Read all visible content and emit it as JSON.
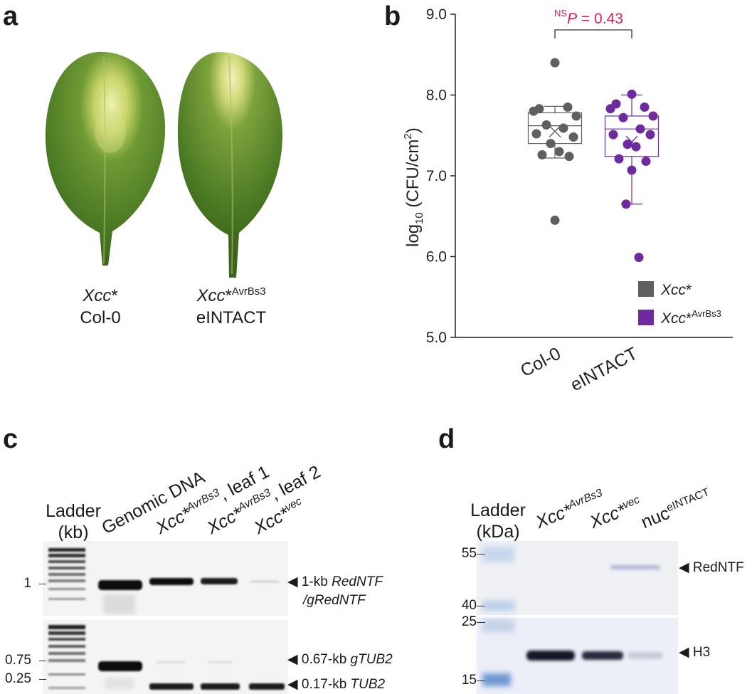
{
  "panel_labels": {
    "a": "a",
    "b": "b",
    "c": "c",
    "d": "d"
  },
  "panel_a": {
    "leaf1": {
      "strain": "Xcc",
      "strain_mark": "*",
      "line": "Col-0"
    },
    "leaf2": {
      "strain": "Xcc",
      "strain_mark": "*",
      "strain_sup": "AvrBs3",
      "line": "eINTACT"
    }
  },
  "chart_data": {
    "type": "box",
    "ylabel_prefix": "log",
    "ylabel_sub": "10",
    "ylabel_main": " (CFU/cm",
    "ylabel_sup": "2",
    "ylabel_end": ")",
    "yticks": [
      "5.0",
      "6.0",
      "7.0",
      "8.0",
      "9.0"
    ],
    "ylim": [
      5.0,
      9.0
    ],
    "categories": [
      "Col-0",
      "eINTACT"
    ],
    "significance": {
      "ns": "NS",
      "p_label": "P",
      "p_text": " = 0.43"
    },
    "colors": {
      "xcc": "#5f5f5f",
      "avrbs3": "#6e2b9e",
      "sig": "#d81b60"
    },
    "legend": {
      "position": "bottom-right",
      "items": [
        {
          "label": "Xcc",
          "mark": "*",
          "sup": "",
          "color": "#5f5f5f"
        },
        {
          "label": "Xcc",
          "mark": "*",
          "sup": "AvrBs3",
          "color": "#6e2b9e"
        }
      ]
    },
    "series": [
      {
        "category": "Col-0",
        "color": "#5f5f5f",
        "box": {
          "whisker_low": 7.22,
          "q1": 7.4,
          "median": 7.62,
          "q3": 7.78,
          "whisker_high": 7.86,
          "mean": 7.55
        },
        "points": [
          8.4,
          7.83,
          7.85,
          7.8,
          7.74,
          7.63,
          7.59,
          7.52,
          7.48,
          7.4,
          7.3,
          7.26,
          7.24,
          6.45
        ]
      },
      {
        "category": "eINTACT",
        "color": "#6e2b9e",
        "box": {
          "whisker_low": 6.65,
          "q1": 7.24,
          "median": 7.58,
          "q3": 7.74,
          "whisker_high": 8.0,
          "mean": 7.42
        },
        "points": [
          8.01,
          7.89,
          7.85,
          7.83,
          7.74,
          7.72,
          7.58,
          7.51,
          7.51,
          7.39,
          7.36,
          7.21,
          7.18,
          7.07,
          6.65,
          5.99
        ]
      }
    ]
  },
  "panel_c": {
    "ladder_title": "Ladder",
    "ladder_unit": "(kb)",
    "lanes": [
      {
        "main": "Genomic DNA",
        "sup": "",
        "tail": ""
      },
      {
        "main": "Xcc*",
        "sup": "AvrBs3",
        "tail": ", leaf 1"
      },
      {
        "main": "Xcc*",
        "sup": "AvrBs3",
        "tail": ", leaf 2"
      },
      {
        "main": "Xcc*",
        "sup": "vec",
        "tail": ""
      }
    ],
    "size_marks": [
      "1",
      "0.75",
      "0.25"
    ],
    "annotations": [
      {
        "prefix": "1-kb ",
        "gene": "RedNTF",
        "line2": "/gRedNTF"
      },
      {
        "prefix": "0.67-kb ",
        "gene": "gTUB2"
      },
      {
        "prefix": "0.17-kb ",
        "gene": "TUB2"
      }
    ]
  },
  "panel_d": {
    "ladder_title": "Ladder",
    "ladder_unit": "(kDa)",
    "lanes": [
      {
        "main": "Xcc*",
        "sup": "AvrBs3"
      },
      {
        "main": "Xcc*",
        "sup": "vec"
      },
      {
        "main": "nuc",
        "sup": "eINTACT"
      }
    ],
    "size_marks": [
      "55",
      "40",
      "25",
      "15"
    ],
    "annotations": [
      "RedNTF",
      "H3"
    ]
  }
}
